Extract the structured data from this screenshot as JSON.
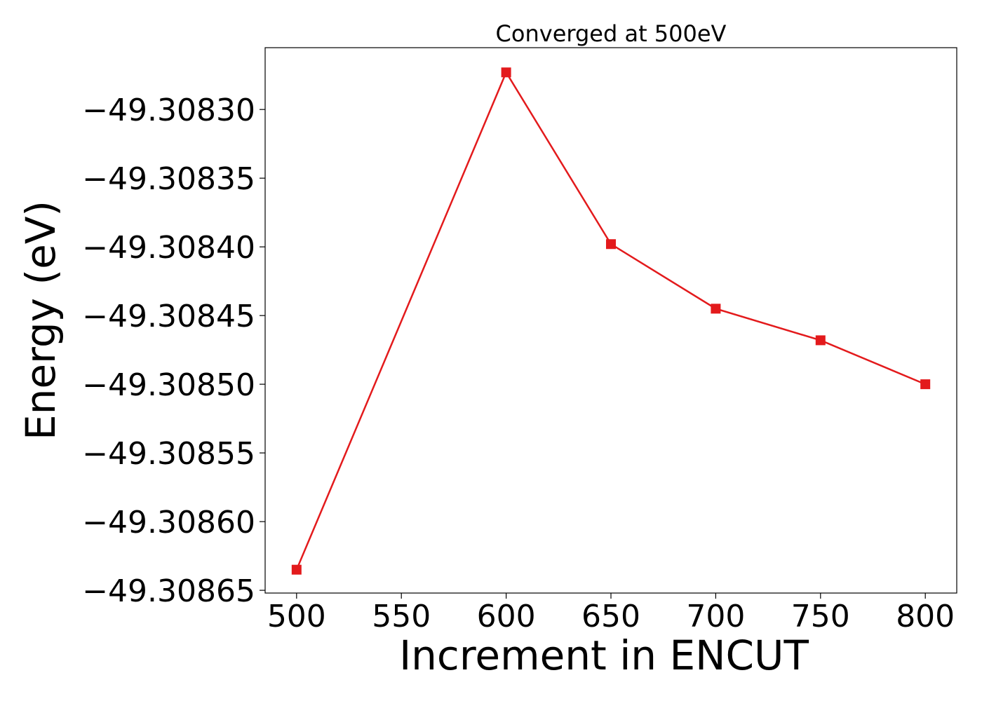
{
  "chart_data": {
    "type": "line",
    "title": "Converged at 500eV",
    "xlabel": "Increment in ENCUT",
    "ylabel": "Energy (eV)",
    "x": [
      500,
      600,
      650,
      700,
      750,
      800
    ],
    "series": [
      {
        "values": [
          -49.308635,
          -49.308273,
          -49.308398,
          -49.308445,
          -49.308468,
          -49.3085
        ],
        "color": "#e31a1c",
        "marker": "square"
      }
    ],
    "xticks": [
      500,
      550,
      600,
      650,
      700,
      750,
      800
    ],
    "xtick_labels": [
      "500",
      "550",
      "600",
      "650",
      "700",
      "750",
      "800"
    ],
    "yticks": [
      -49.3083,
      -49.30835,
      -49.3084,
      -49.30845,
      -49.3085,
      -49.30855,
      -49.3086,
      -49.30865
    ],
    "ytick_labels": [
      "−49.30830",
      "−49.30835",
      "−49.30840",
      "−49.30845",
      "−49.30850",
      "−49.30855",
      "−49.30860",
      "−49.30865"
    ],
    "xlim": [
      485,
      815
    ],
    "ylim": [
      -49.308652,
      -49.308255
    ],
    "grid": false,
    "legend": false
  }
}
